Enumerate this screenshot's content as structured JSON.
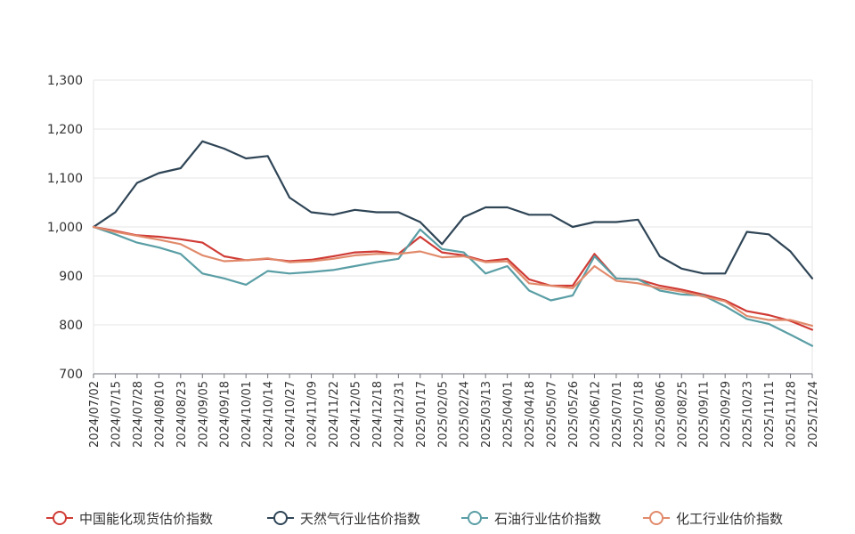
{
  "chart_data": {
    "type": "line",
    "title": "",
    "xlabel": "",
    "ylabel": "",
    "ylim": [
      700,
      1300
    ],
    "yticks": [
      "700",
      "800",
      "900",
      "1,000",
      "1,100",
      "1,200",
      "1,300"
    ],
    "ytick_values": [
      700,
      800,
      900,
      1000,
      1100,
      1200,
      1300
    ],
    "xticks": [
      "2024/07/02",
      "2024/07/15",
      "2024/07/28",
      "2024/08/10",
      "2024/08/23",
      "2024/09/05",
      "2024/09/18",
      "2024/10/01",
      "2024/10/14",
      "2024/10/27",
      "2024/11/09",
      "2024/11/22",
      "2024/12/05",
      "2024/12/18",
      "2024/12/31",
      "2025/01/17",
      "2025/02/05",
      "2025/02/24",
      "2025/03/13",
      "2025/04/01",
      "2025/04/18",
      "2025/05/07",
      "2025/05/26",
      "2025/06/12",
      "2025/07/01",
      "2025/07/18",
      "2025/08/06",
      "2025/08/25",
      "2025/09/11",
      "2025/09/29",
      "2025/10/23",
      "2025/11/11",
      "2025/11/28",
      "2025/12/24"
    ],
    "grid": true,
    "legend_position": "bottom",
    "series": [
      {
        "name": "中国能化现货估价指数",
        "color": "#d03b35",
        "values": [
          1000,
          992,
          983,
          980,
          975,
          968,
          940,
          932,
          935,
          930,
          933,
          940,
          948,
          950,
          945,
          980,
          948,
          942,
          930,
          935,
          893,
          880,
          880,
          945,
          895,
          893,
          880,
          872,
          862,
          850,
          828,
          820,
          808,
          790
        ]
      },
      {
        "name": "天然气行业估价指数",
        "color": "#2f4556",
        "values": [
          1000,
          1030,
          1090,
          1110,
          1120,
          1175,
          1160,
          1140,
          1145,
          1060,
          1030,
          1025,
          1035,
          1030,
          1030,
          1010,
          965,
          1020,
          1040,
          1040,
          1025,
          1025,
          1000,
          1010,
          1010,
          1015,
          940,
          915,
          905,
          905,
          990,
          985,
          950,
          895
        ]
      },
      {
        "name": "石油行业估价指数",
        "color": "#5a9ea5",
        "values": [
          1000,
          985,
          968,
          958,
          945,
          905,
          895,
          882,
          910,
          905,
          908,
          912,
          920,
          928,
          935,
          995,
          955,
          948,
          905,
          920,
          870,
          850,
          860,
          940,
          895,
          893,
          870,
          862,
          860,
          838,
          812,
          802,
          780,
          757
        ]
      },
      {
        "name": "化工行业估价指数",
        "color": "#e18a6b",
        "values": [
          1000,
          990,
          982,
          974,
          965,
          942,
          930,
          932,
          936,
          928,
          930,
          935,
          942,
          945,
          945,
          950,
          938,
          940,
          928,
          930,
          885,
          880,
          875,
          920,
          890,
          885,
          875,
          868,
          858,
          848,
          818,
          810,
          810,
          798
        ]
      }
    ]
  }
}
